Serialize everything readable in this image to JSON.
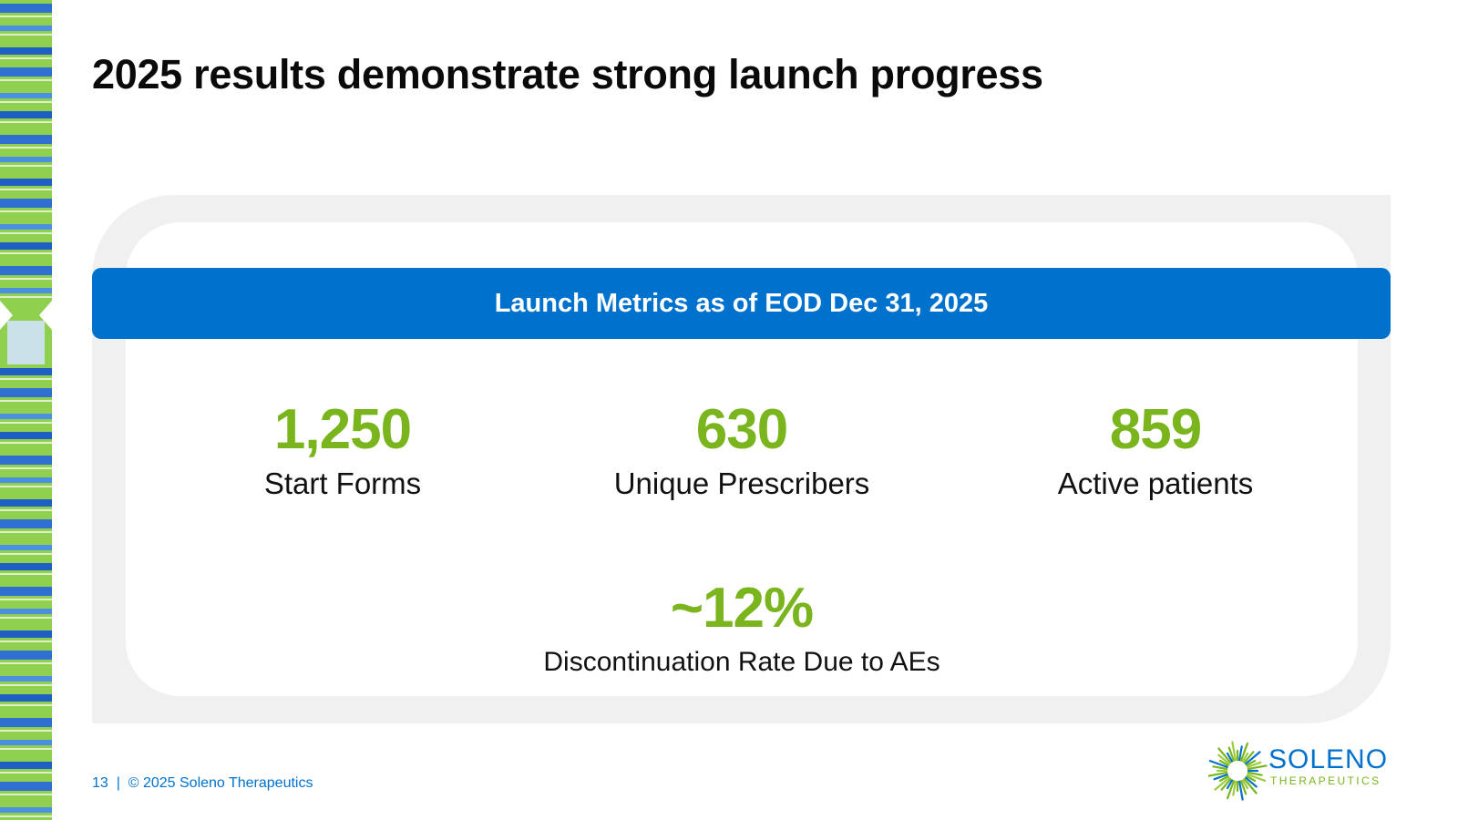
{
  "slide": {
    "title": "2025 results demonstrate strong launch progress"
  },
  "panel": {
    "banner_text": "Launch Metrics as of EOD Dec 31, 2025",
    "metrics": [
      {
        "value": "1,250",
        "label": "Start Forms"
      },
      {
        "value": "630",
        "label": "Unique Prescribers"
      },
      {
        "value": "859",
        "label": "Active patients"
      },
      {
        "value": "~12%",
        "label": "Discontinuation Rate Due to AEs"
      }
    ]
  },
  "footer": {
    "text": "13  |  © 2025 Soleno Therapeutics"
  },
  "logo": {
    "icon": "starburst-icon",
    "name": "SOLENO",
    "subtitle": "THERAPEUTICS"
  },
  "colors": {
    "accent_blue": "#0072ce",
    "accent_green": "#7ab51d",
    "panel_gray": "#f0f0f0"
  }
}
